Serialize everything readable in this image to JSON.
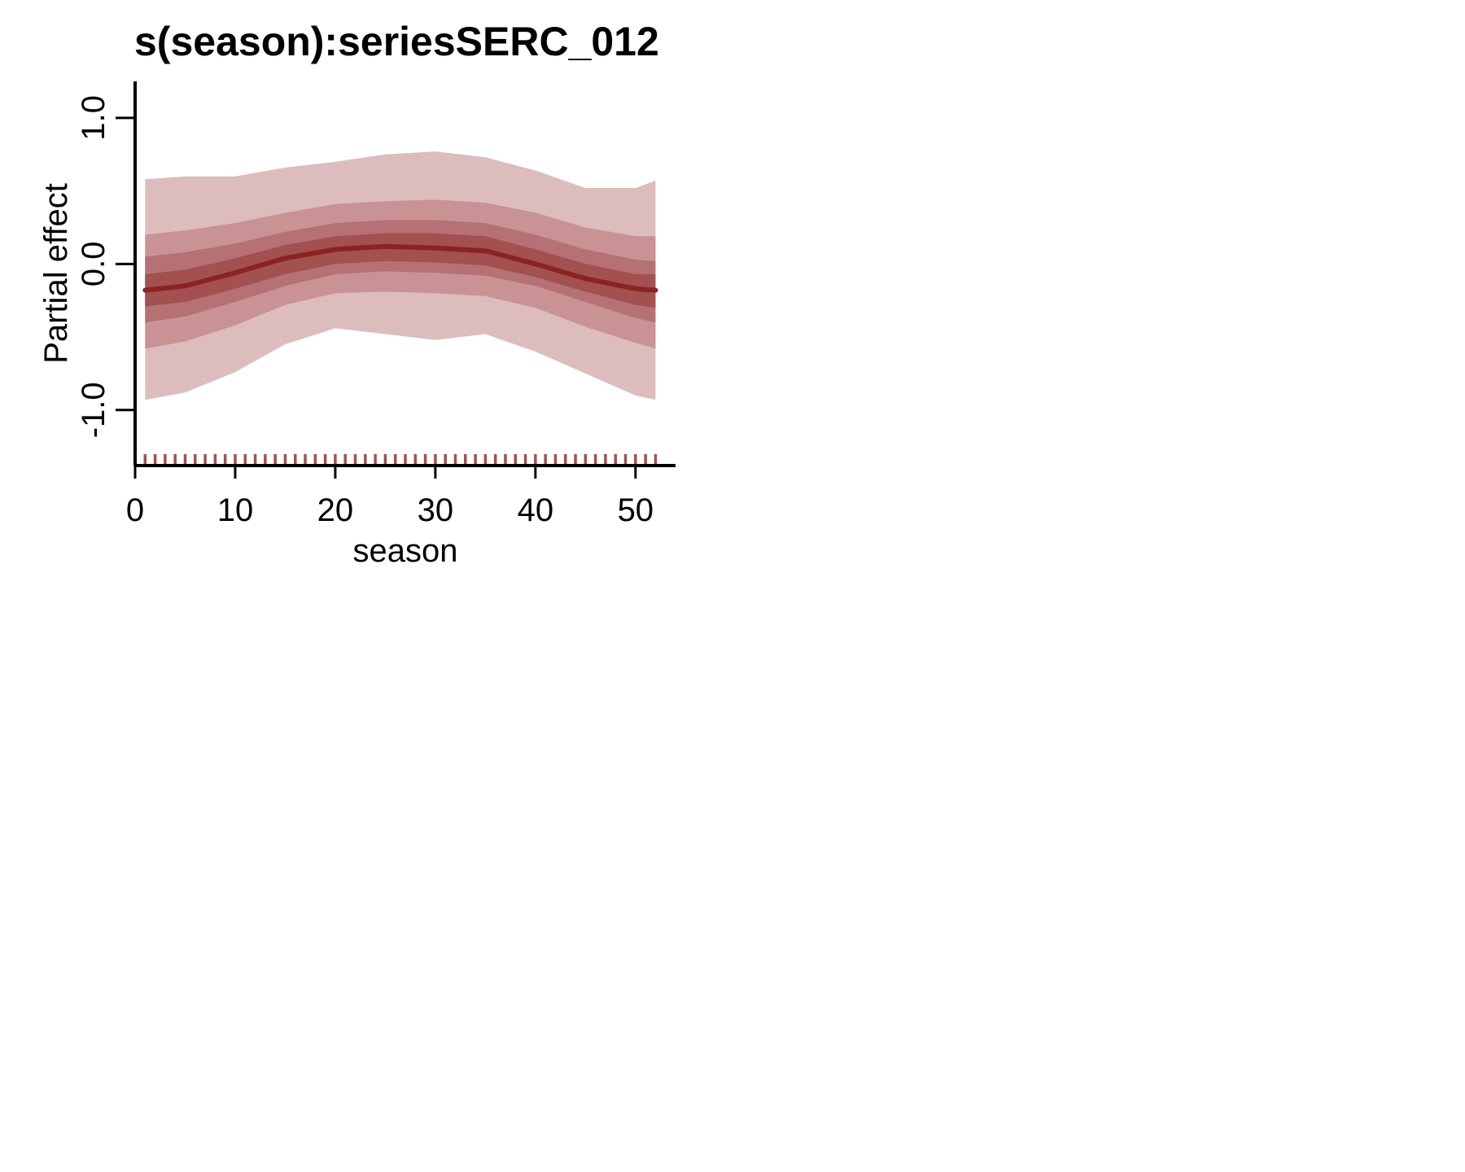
{
  "chart_data": {
    "type": "line",
    "title": "s(season):seriesSERC_012",
    "xlabel": "season",
    "ylabel": "Partial effect",
    "xlim": [
      0,
      54
    ],
    "ylim": [
      -1.38,
      1.25
    ],
    "x_ticks": [
      0,
      10,
      20,
      30,
      40,
      50
    ],
    "x_tick_labels": [
      "0",
      "10",
      "20",
      "30",
      "40",
      "50"
    ],
    "y_ticks": [
      -1.0,
      0.0,
      1.0
    ],
    "y_tick_labels": [
      "-1.0",
      "0.0",
      "1.0"
    ],
    "grid": false,
    "legend": "none",
    "colors": {
      "median": "#8b2323",
      "band_outer": "#dcbcbd",
      "band_2": "#c99294",
      "band_3": "#b57173",
      "band_inner": "#a35050",
      "rug": "#a35050"
    },
    "x": [
      1,
      5,
      10,
      15,
      20,
      25,
      30,
      35,
      40,
      45,
      50,
      52
    ],
    "median": [
      -0.18,
      -0.15,
      -0.06,
      0.04,
      0.1,
      0.12,
      0.11,
      0.09,
      0.0,
      -0.1,
      -0.17,
      -0.18
    ],
    "bands": [
      {
        "level": "outer",
        "lower": [
          -0.93,
          -0.88,
          -0.74,
          -0.55,
          -0.44,
          -0.48,
          -0.52,
          -0.48,
          -0.6,
          -0.75,
          -0.9,
          -0.93
        ],
        "upper": [
          0.58,
          0.6,
          0.6,
          0.66,
          0.7,
          0.75,
          0.77,
          0.73,
          0.64,
          0.52,
          0.52,
          0.57
        ]
      },
      {
        "level": "2",
        "lower": [
          -0.58,
          -0.53,
          -0.42,
          -0.28,
          -0.2,
          -0.19,
          -0.2,
          -0.22,
          -0.3,
          -0.43,
          -0.54,
          -0.58
        ],
        "upper": [
          0.2,
          0.23,
          0.28,
          0.35,
          0.41,
          0.43,
          0.44,
          0.42,
          0.35,
          0.25,
          0.19,
          0.19
        ]
      },
      {
        "level": "3",
        "lower": [
          -0.4,
          -0.36,
          -0.26,
          -0.15,
          -0.07,
          -0.05,
          -0.06,
          -0.08,
          -0.15,
          -0.26,
          -0.37,
          -0.4
        ],
        "upper": [
          0.05,
          0.08,
          0.14,
          0.22,
          0.28,
          0.3,
          0.3,
          0.28,
          0.2,
          0.1,
          0.03,
          0.02
        ]
      },
      {
        "level": "inner",
        "lower": [
          -0.29,
          -0.26,
          -0.17,
          -0.07,
          0.0,
          0.02,
          0.01,
          -0.01,
          -0.09,
          -0.19,
          -0.28,
          -0.3
        ],
        "upper": [
          -0.07,
          -0.04,
          0.04,
          0.13,
          0.19,
          0.21,
          0.21,
          0.19,
          0.1,
          0.0,
          -0.07,
          -0.07
        ]
      }
    ],
    "rug_x": [
      1,
      2,
      3,
      4,
      5,
      6,
      7,
      8,
      9,
      10,
      11,
      12,
      13,
      14,
      15,
      16,
      17,
      18,
      19,
      20,
      21,
      22,
      23,
      24,
      25,
      26,
      27,
      28,
      29,
      30,
      31,
      32,
      33,
      34,
      35,
      36,
      37,
      38,
      39,
      40,
      41,
      42,
      43,
      44,
      45,
      46,
      47,
      48,
      49,
      50,
      51,
      52
    ]
  }
}
